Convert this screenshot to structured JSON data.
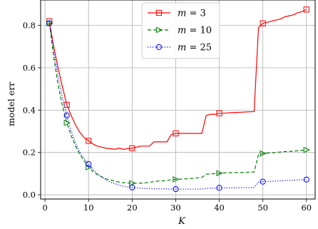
{
  "chart_data": {
    "type": "line",
    "title": "",
    "xlabel": "K",
    "ylabel": "model err",
    "xlim": [
      -1,
      62
    ],
    "ylim": [
      -0.02,
      0.92
    ],
    "xticks": [
      0,
      10,
      20,
      30,
      40,
      50,
      60
    ],
    "yticks": [
      0.0,
      0.2,
      0.4,
      0.6,
      0.8
    ],
    "xtick_labels": [
      "0",
      "10",
      "20",
      "30",
      "40",
      "50",
      "60"
    ],
    "ytick_labels": [
      "0.0",
      "0.2",
      "0.4",
      "0.6",
      "0.8"
    ],
    "grid": true,
    "legend_position": "top-center",
    "series": [
      {
        "name_prefix": "m",
        "name_suffix": " = 3",
        "color": "#ff0000",
        "linestyle": "solid",
        "marker": "square",
        "x": [
          1,
          2,
          3,
          4,
          5,
          6,
          7,
          8,
          9,
          10,
          11,
          12,
          13,
          14,
          15,
          16,
          17,
          18,
          19,
          20,
          21,
          22,
          23,
          24,
          25,
          26,
          27,
          28,
          29,
          30,
          31,
          32,
          33,
          34,
          35,
          36,
          37,
          38,
          39,
          40,
          41,
          42,
          43,
          44,
          45,
          46,
          47,
          48,
          49,
          50,
          51,
          52,
          53,
          54,
          55,
          56,
          57,
          58,
          59,
          60
        ],
        "values": [
          0.82,
          0.7,
          0.6,
          0.51,
          0.425,
          0.375,
          0.33,
          0.295,
          0.27,
          0.255,
          0.24,
          0.23,
          0.225,
          0.22,
          0.218,
          0.215,
          0.22,
          0.215,
          0.218,
          0.22,
          0.225,
          0.23,
          0.23,
          0.23,
          0.25,
          0.25,
          0.25,
          0.25,
          0.285,
          0.29,
          0.29,
          0.29,
          0.29,
          0.29,
          0.29,
          0.29,
          0.375,
          0.38,
          0.38,
          0.385,
          0.385,
          0.387,
          0.388,
          0.389,
          0.39,
          0.391,
          0.392,
          0.393,
          0.79,
          0.81,
          0.815,
          0.82,
          0.825,
          0.83,
          0.84,
          0.845,
          0.85,
          0.86,
          0.865,
          0.875
        ],
        "marker_x": [
          1,
          5,
          10,
          20,
          30,
          40,
          50,
          60
        ]
      },
      {
        "name_prefix": "m",
        "name_suffix": " = 10",
        "color": "#008000",
        "linestyle": "dashed",
        "marker": "triangle-right",
        "x": [
          1,
          2,
          3,
          4,
          5,
          6,
          7,
          8,
          9,
          10,
          11,
          12,
          13,
          14,
          15,
          16,
          17,
          18,
          19,
          20,
          21,
          22,
          23,
          24,
          25,
          26,
          27,
          28,
          29,
          30,
          31,
          32,
          33,
          34,
          35,
          36,
          37,
          38,
          39,
          40,
          41,
          42,
          43,
          44,
          45,
          46,
          47,
          48,
          49,
          50,
          51,
          52,
          53,
          54,
          55,
          56,
          57,
          58,
          59,
          60
        ],
        "values": [
          0.81,
          0.65,
          0.52,
          0.42,
          0.34,
          0.28,
          0.23,
          0.19,
          0.16,
          0.13,
          0.11,
          0.095,
          0.085,
          0.075,
          0.07,
          0.065,
          0.06,
          0.057,
          0.056,
          0.055,
          0.055,
          0.055,
          0.056,
          0.06,
          0.062,
          0.065,
          0.066,
          0.067,
          0.072,
          0.073,
          0.074,
          0.075,
          0.076,
          0.078,
          0.08,
          0.082,
          0.097,
          0.099,
          0.1,
          0.102,
          0.103,
          0.104,
          0.105,
          0.105,
          0.105,
          0.106,
          0.107,
          0.108,
          0.19,
          0.195,
          0.197,
          0.198,
          0.2,
          0.202,
          0.204,
          0.205,
          0.206,
          0.208,
          0.21,
          0.212
        ],
        "marker_x": [
          1,
          5,
          10,
          20,
          30,
          40,
          50,
          60
        ]
      },
      {
        "name_prefix": "m",
        "name_suffix": " = 25",
        "color": "#0000ff",
        "linestyle": "dotted",
        "marker": "circle",
        "x": [
          1,
          2,
          3,
          4,
          5,
          6,
          7,
          8,
          9,
          10,
          11,
          12,
          13,
          14,
          15,
          16,
          17,
          18,
          19,
          20,
          21,
          22,
          23,
          24,
          25,
          26,
          27,
          28,
          29,
          30,
          31,
          32,
          33,
          34,
          35,
          36,
          37,
          38,
          39,
          40,
          41,
          42,
          43,
          44,
          45,
          46,
          47,
          48,
          49,
          50,
          51,
          52,
          53,
          54,
          55,
          56,
          57,
          58,
          59,
          60
        ],
        "values": [
          0.81,
          0.68,
          0.56,
          0.46,
          0.375,
          0.3,
          0.245,
          0.2,
          0.17,
          0.145,
          0.12,
          0.1,
          0.085,
          0.07,
          0.06,
          0.052,
          0.046,
          0.04,
          0.037,
          0.035,
          0.033,
          0.031,
          0.03,
          0.029,
          0.028,
          0.028,
          0.028,
          0.028,
          0.027,
          0.027,
          0.027,
          0.027,
          0.027,
          0.027,
          0.027,
          0.027,
          0.03,
          0.031,
          0.032,
          0.033,
          0.033,
          0.033,
          0.033,
          0.033,
          0.034,
          0.034,
          0.034,
          0.035,
          0.06,
          0.062,
          0.063,
          0.064,
          0.065,
          0.066,
          0.067,
          0.068,
          0.069,
          0.07,
          0.071,
          0.072
        ],
        "marker_x": [
          1,
          5,
          10,
          20,
          30,
          40,
          50,
          60
        ]
      }
    ]
  }
}
